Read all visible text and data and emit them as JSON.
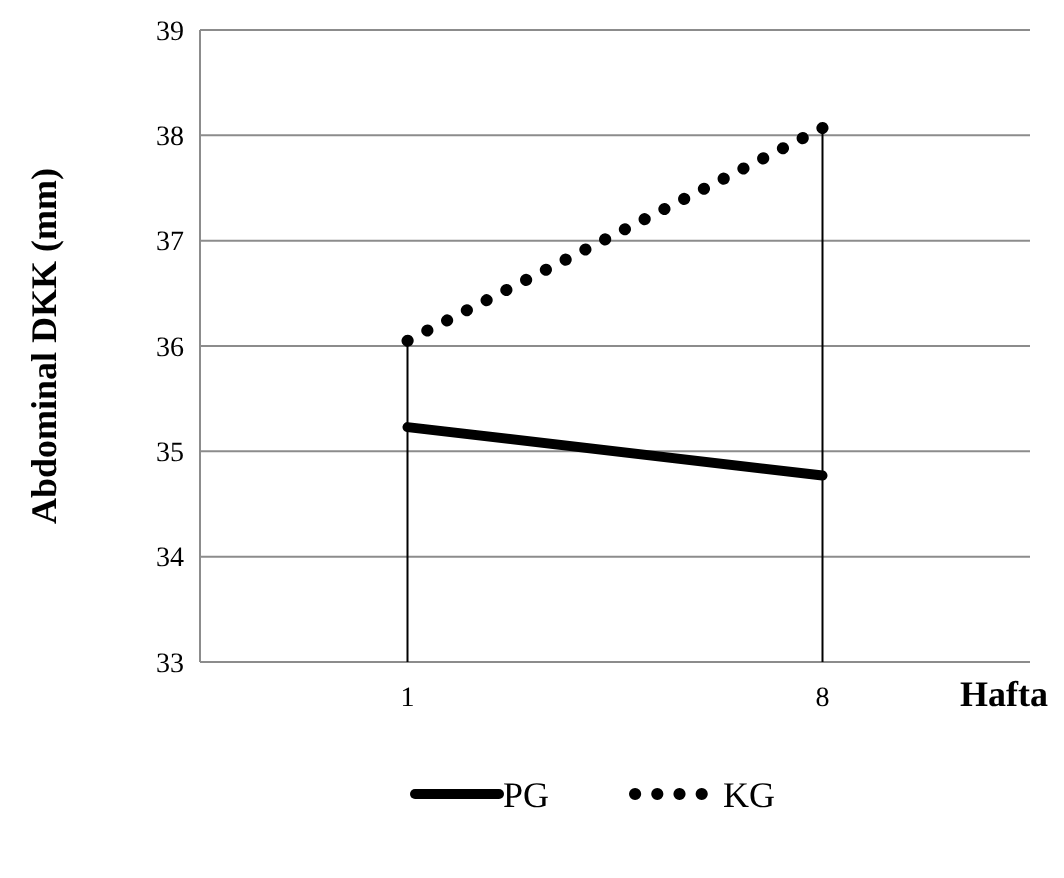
{
  "chart_data": {
    "type": "line",
    "xlabel": "Hafta",
    "ylabel": "Abdominal DKK (mm)",
    "categories": [
      "1",
      "8"
    ],
    "series": [
      {
        "name": "PG",
        "color": "#000000",
        "values": [
          35.23,
          34.77
        ],
        "line_style": "solid"
      },
      {
        "name": "KG",
        "color": "#000000",
        "values": [
          36.05,
          38.07
        ],
        "line_style": "dotted",
        "errors": [
          [
            33,
            36.05
          ],
          [
            33,
            38.07
          ]
        ]
      }
    ],
    "ylim": [
      33,
      39
    ],
    "yticks": [
      33,
      34,
      35,
      36,
      37,
      38,
      39
    ],
    "grid": "y",
    "legend": "bottom",
    "marker": "none"
  }
}
